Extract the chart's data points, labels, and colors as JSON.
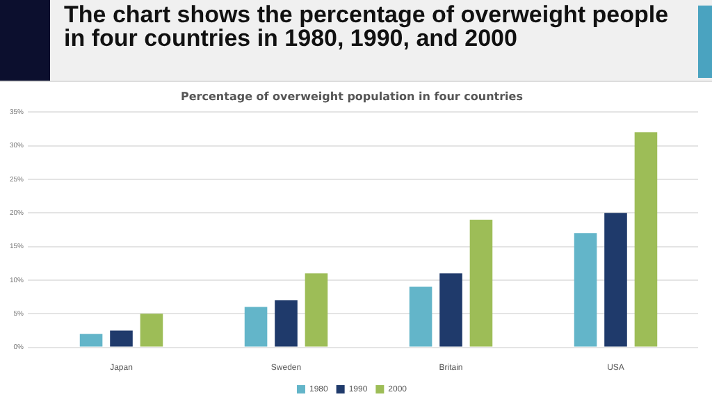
{
  "chart_data": {
    "type": "bar",
    "title": "The chart shows the percentage of overweight people in four countries in 1980, 1990, and 2000",
    "subtitle": "Percentage of overweight population in four countries",
    "categories": [
      "Japan",
      "Sweden",
      "Britain",
      "USA"
    ],
    "series": [
      {
        "name": "1980",
        "color": "#63b5c9",
        "values": [
          2,
          6,
          9,
          17
        ]
      },
      {
        "name": "1990",
        "color": "#1f3a6b",
        "values": [
          2.5,
          7,
          11,
          20
        ]
      },
      {
        "name": "2000",
        "color": "#9dbd57",
        "values": [
          5,
          11,
          19,
          32
        ]
      }
    ],
    "ylim": [
      0,
      35
    ],
    "yticks": [
      {
        "value": 0,
        "label": "0%"
      },
      {
        "value": 5,
        "label": "5%"
      },
      {
        "value": 10,
        "label": "10%"
      },
      {
        "value": 15,
        "label": "15%"
      },
      {
        "value": 20,
        "label": "20%"
      },
      {
        "value": 25,
        "label": "25%"
      },
      {
        "value": 30,
        "label": "30%"
      },
      {
        "value": 35,
        "label": "35%"
      }
    ],
    "grid": "y",
    "legend": "bottom"
  }
}
